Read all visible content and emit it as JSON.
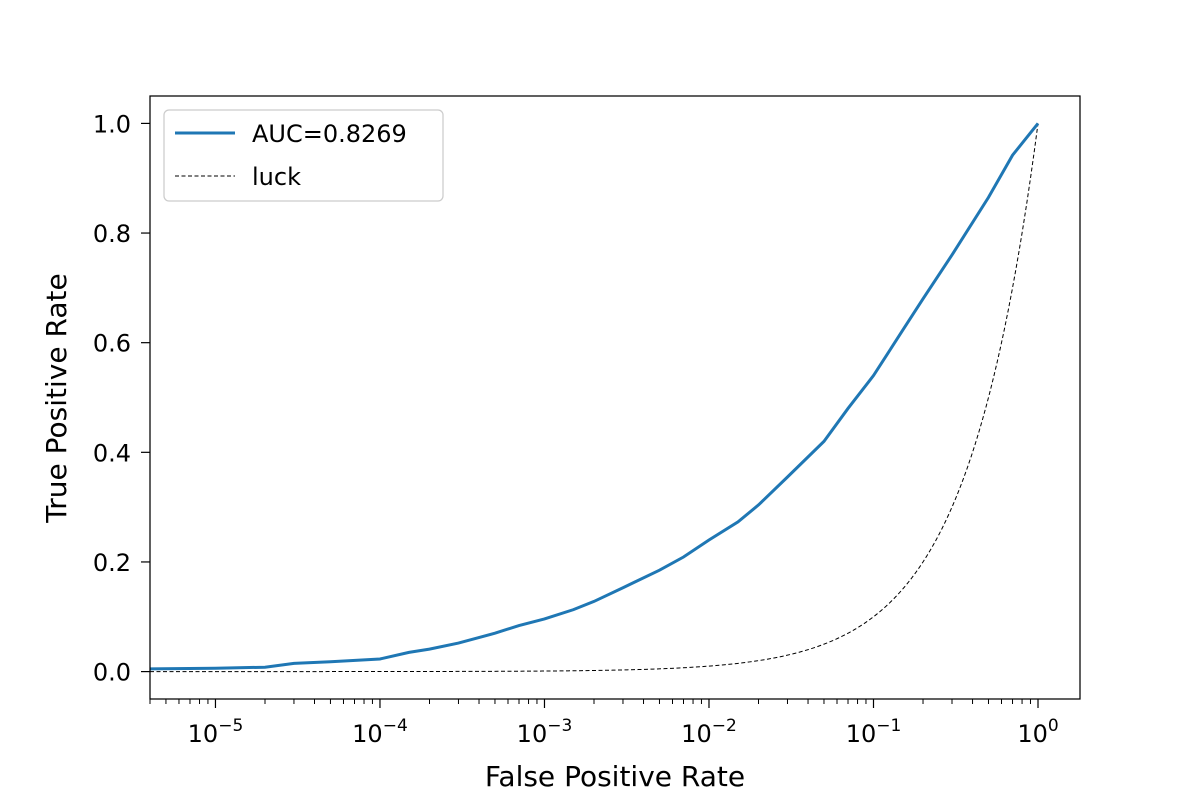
{
  "chart_data": {
    "type": "line",
    "title": "",
    "xlabel": "False Positive Rate",
    "ylabel": "True Positive Rate",
    "xscale": "log",
    "xlim": [
      4e-06,
      1.8
    ],
    "ylim": [
      -0.05,
      1.05
    ],
    "x_ticks": [
      {
        "value": 1e-05,
        "base": "10",
        "exp": "−5"
      },
      {
        "value": 0.0001,
        "base": "10",
        "exp": "−4"
      },
      {
        "value": 0.001,
        "base": "10",
        "exp": "−3"
      },
      {
        "value": 0.01,
        "base": "10",
        "exp": "−2"
      },
      {
        "value": 0.1,
        "base": "10",
        "exp": "−1"
      },
      {
        "value": 1,
        "base": "10",
        "exp": "0"
      }
    ],
    "y_ticks": [
      {
        "value": 0.0,
        "label": "0.0"
      },
      {
        "value": 0.2,
        "label": "0.2"
      },
      {
        "value": 0.4,
        "label": "0.4"
      },
      {
        "value": 0.6,
        "label": "0.6"
      },
      {
        "value": 0.8,
        "label": "0.8"
      },
      {
        "value": 1.0,
        "label": "1.0"
      }
    ],
    "grid": false,
    "legend_position": "upper-left",
    "series": [
      {
        "name": "AUC=0.8269",
        "color": "#1f77b4",
        "style": "solid",
        "x": [
          4e-06,
          1e-05,
          2e-05,
          3e-05,
          5e-05,
          0.0001,
          0.00015,
          0.0002,
          0.0003,
          0.0005,
          0.0007,
          0.001,
          0.0015,
          0.002,
          0.003,
          0.005,
          0.007,
          0.01,
          0.015,
          0.02,
          0.03,
          0.05,
          0.07,
          0.1,
          0.15,
          0.2,
          0.3,
          0.5,
          0.7,
          1.0
        ],
        "y": [
          0.005,
          0.006,
          0.008,
          0.015,
          0.018,
          0.023,
          0.035,
          0.041,
          0.052,
          0.07,
          0.084,
          0.096,
          0.113,
          0.128,
          0.153,
          0.185,
          0.209,
          0.24,
          0.273,
          0.304,
          0.355,
          0.42,
          0.48,
          0.54,
          0.622,
          0.68,
          0.76,
          0.865,
          0.942,
          1.0
        ]
      },
      {
        "name": "luck",
        "color": "#000000",
        "style": "dashed",
        "x": "identity",
        "y": "equals x"
      }
    ]
  }
}
